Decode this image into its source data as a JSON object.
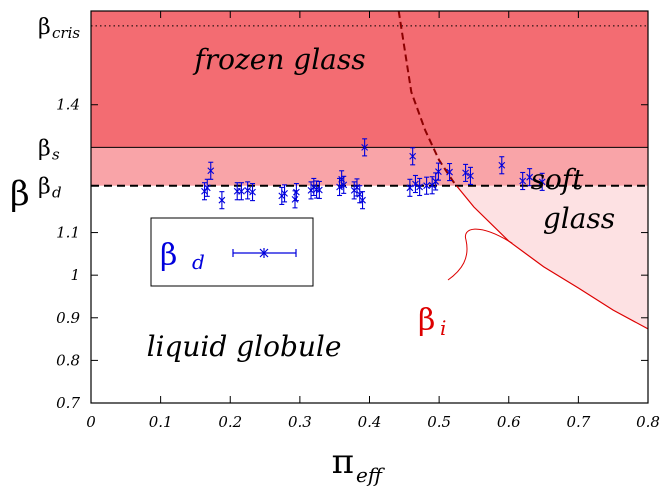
{
  "chart_data": {
    "type": "scatter",
    "xlabel": "π",
    "xlabel_sub": "eff",
    "ylabel": "β",
    "xlim": [
      0,
      0.8
    ],
    "ylim": [
      0.7,
      1.62
    ],
    "x_ticks": [
      "0",
      "0.1",
      "0.2",
      "0.3",
      "0.4",
      "0.5",
      "0.6",
      "0.7",
      "0.8"
    ],
    "y_ticks": [
      "0.7",
      "0.8",
      "0.9",
      "1",
      "1.1",
      "1.4"
    ],
    "levels": [
      {
        "main": "β",
        "sub": "cris",
        "value": 1.585,
        "style": "dotted"
      },
      {
        "main": "β",
        "sub": "s",
        "value": 1.3,
        "style": "solid"
      },
      {
        "main": "β",
        "sub": "d",
        "value": 1.21,
        "style": "dashed"
      }
    ],
    "regions": {
      "frozen": [
        "frozen glass"
      ],
      "soft": [
        "soft",
        "glass"
      ],
      "liquid": [
        "liquid globule"
      ]
    },
    "colors": {
      "frozen": "#f36c72",
      "mid": "#f9a4a8",
      "soft": "#fde1e3",
      "points": "#0000dd",
      "curve": "#dd0000"
    },
    "legend": {
      "main": "β",
      "sub": "d",
      "position": "center-left"
    },
    "curve_label": {
      "main": "β",
      "sub": "i"
    },
    "curve_beta_i": [
      {
        "x": 0.442,
        "y": 1.62
      },
      {
        "x": 0.46,
        "y": 1.43
      },
      {
        "x": 0.48,
        "y": 1.34
      },
      {
        "x": 0.5,
        "y": 1.27
      },
      {
        "x": 0.52,
        "y": 1.22
      },
      {
        "x": 0.55,
        "y": 1.16
      },
      {
        "x": 0.6,
        "y": 1.08
      },
      {
        "x": 0.65,
        "y": 1.02
      },
      {
        "x": 0.7,
        "y": 0.97
      },
      {
        "x": 0.75,
        "y": 0.918
      },
      {
        "x": 0.8,
        "y": 0.874
      }
    ],
    "series": [
      {
        "name": "β_d",
        "points": [
          {
            "x": 0.163,
            "y": 1.197,
            "err": 0.02
          },
          {
            "x": 0.167,
            "y": 1.205,
            "err": 0.02
          },
          {
            "x": 0.172,
            "y": 1.245,
            "err": 0.02
          },
          {
            "x": 0.188,
            "y": 1.176,
            "err": 0.02
          },
          {
            "x": 0.21,
            "y": 1.197,
            "err": 0.02
          },
          {
            "x": 0.216,
            "y": 1.197,
            "err": 0.02
          },
          {
            "x": 0.225,
            "y": 1.199,
            "err": 0.02
          },
          {
            "x": 0.232,
            "y": 1.195,
            "err": 0.02
          },
          {
            "x": 0.274,
            "y": 1.186,
            "err": 0.02
          },
          {
            "x": 0.278,
            "y": 1.192,
            "err": 0.02
          },
          {
            "x": 0.293,
            "y": 1.178,
            "err": 0.02
          },
          {
            "x": 0.295,
            "y": 1.195,
            "err": 0.02
          },
          {
            "x": 0.316,
            "y": 1.199,
            "err": 0.02
          },
          {
            "x": 0.32,
            "y": 1.207,
            "err": 0.02
          },
          {
            "x": 0.324,
            "y": 1.201,
            "err": 0.02
          },
          {
            "x": 0.328,
            "y": 1.2,
            "err": 0.02
          },
          {
            "x": 0.357,
            "y": 1.207,
            "err": 0.02
          },
          {
            "x": 0.36,
            "y": 1.225,
            "err": 0.02
          },
          {
            "x": 0.363,
            "y": 1.212,
            "err": 0.02
          },
          {
            "x": 0.378,
            "y": 1.199,
            "err": 0.02
          },
          {
            "x": 0.382,
            "y": 1.206,
            "err": 0.02
          },
          {
            "x": 0.386,
            "y": 1.19,
            "err": 0.02
          },
          {
            "x": 0.39,
            "y": 1.176,
            "err": 0.02
          },
          {
            "x": 0.393,
            "y": 1.3,
            "err": 0.02
          },
          {
            "x": 0.458,
            "y": 1.205,
            "err": 0.02
          },
          {
            "x": 0.462,
            "y": 1.279,
            "err": 0.02
          },
          {
            "x": 0.466,
            "y": 1.214,
            "err": 0.02
          },
          {
            "x": 0.472,
            "y": 1.207,
            "err": 0.02
          },
          {
            "x": 0.482,
            "y": 1.21,
            "err": 0.02
          },
          {
            "x": 0.49,
            "y": 1.211,
            "err": 0.02
          },
          {
            "x": 0.495,
            "y": 1.22,
            "err": 0.02
          },
          {
            "x": 0.499,
            "y": 1.243,
            "err": 0.02
          },
          {
            "x": 0.515,
            "y": 1.242,
            "err": 0.02
          },
          {
            "x": 0.538,
            "y": 1.24,
            "err": 0.02
          },
          {
            "x": 0.545,
            "y": 1.233,
            "err": 0.02
          },
          {
            "x": 0.59,
            "y": 1.258,
            "err": 0.02
          },
          {
            "x": 0.62,
            "y": 1.221,
            "err": 0.02
          },
          {
            "x": 0.63,
            "y": 1.23,
            "err": 0.02
          },
          {
            "x": 0.648,
            "y": 1.219,
            "err": 0.02
          }
        ]
      }
    ]
  }
}
